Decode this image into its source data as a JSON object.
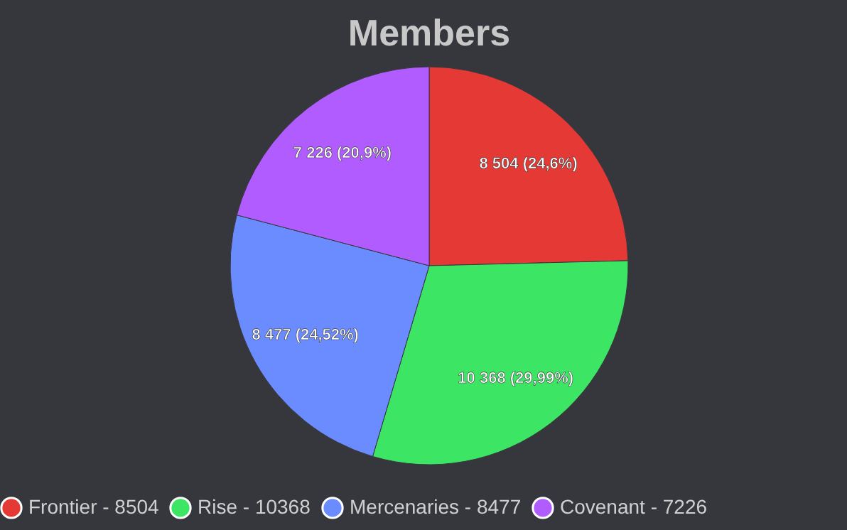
{
  "chart_data": {
    "type": "pie",
    "title": "Members",
    "categories": [
      "Frontier - 8504",
      "Rise - 10368",
      "Mercenaries - 8477",
      "Covenant - 7226"
    ],
    "values": [
      8504,
      10368,
      8477,
      7226
    ],
    "colors": [
      "#e53935",
      "#3de565",
      "#6b8cff",
      "#b05cff"
    ],
    "value_labels": [
      "8 504 (24,6%)",
      "10 368 (29,99%)",
      "8 477 (24,52%)",
      "7 226 (20,9%)"
    ],
    "legend": "bottom"
  }
}
